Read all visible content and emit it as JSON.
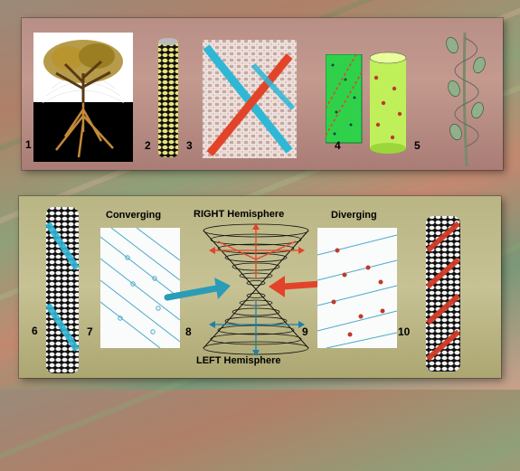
{
  "figure_numbers": [
    "1",
    "2",
    "3",
    "4",
    "5",
    "6",
    "7",
    "8",
    "9",
    "10"
  ],
  "labels": {
    "converging": "Converging",
    "diverging": "Diverging",
    "right_hemisphere": "RIGHT Hemisphere",
    "left_hemisphere": "LEFT Hemisphere"
  },
  "colors": {
    "cyan": "#2fb7d6",
    "red": "#e2442a",
    "green": "#2fd14a",
    "yellow_green": "#c9f04a",
    "dark": "#111111",
    "leaf": "#8fb08a"
  }
}
